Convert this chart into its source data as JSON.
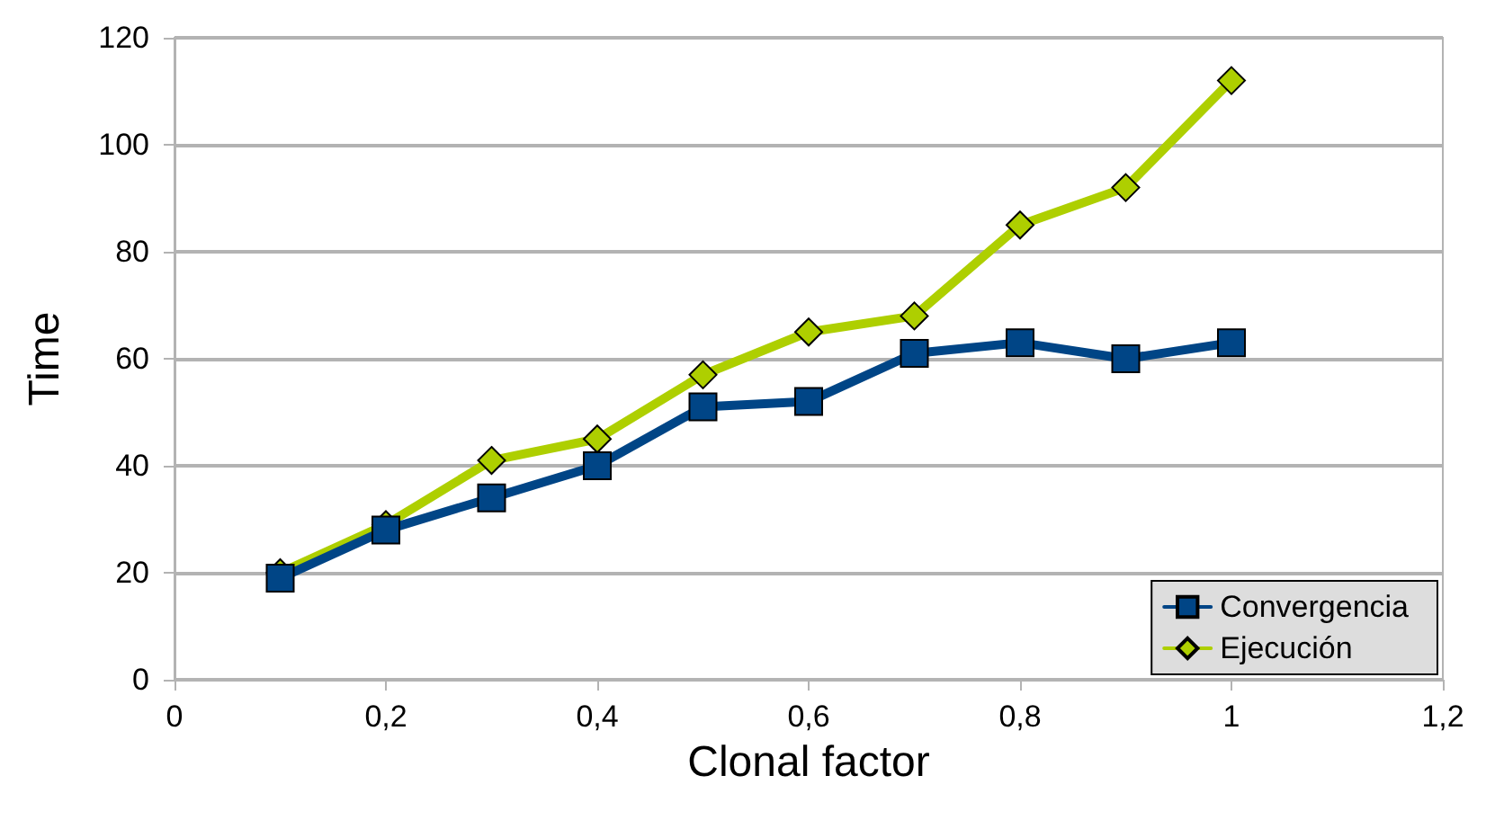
{
  "chart_data": {
    "type": "line",
    "xlabel": "Clonal factor",
    "ylabel": "Time",
    "x": [
      0.1,
      0.2,
      0.3,
      0.4,
      0.5,
      0.6,
      0.7,
      0.8,
      0.9,
      1.0
    ],
    "series": [
      {
        "name": "Convergencia",
        "color": "#004586",
        "marker": "square",
        "values": [
          19,
          28,
          34,
          40,
          51,
          52,
          61,
          63,
          60,
          63
        ]
      },
      {
        "name": "Ejecución",
        "color": "#aecf00",
        "marker": "diamond",
        "values": [
          20,
          29,
          41,
          45,
          57,
          65,
          68,
          85,
          92,
          112
        ]
      }
    ],
    "xlim": [
      0,
      1.2
    ],
    "xticks": [
      0,
      {
        "value": 0.2,
        "label": "0,2"
      },
      {
        "value": 0.4,
        "label": "0,4"
      },
      {
        "value": 0.6,
        "label": "0,6"
      },
      {
        "value": 0.8,
        "label": "0,8"
      },
      1,
      {
        "value": 1.2,
        "label": "1,2"
      }
    ],
    "ylim": [
      0,
      120
    ],
    "yticks": [
      0,
      20,
      40,
      60,
      80,
      100,
      120
    ],
    "grid": "y",
    "legend": "bottom right",
    "line_style": "solid"
  }
}
